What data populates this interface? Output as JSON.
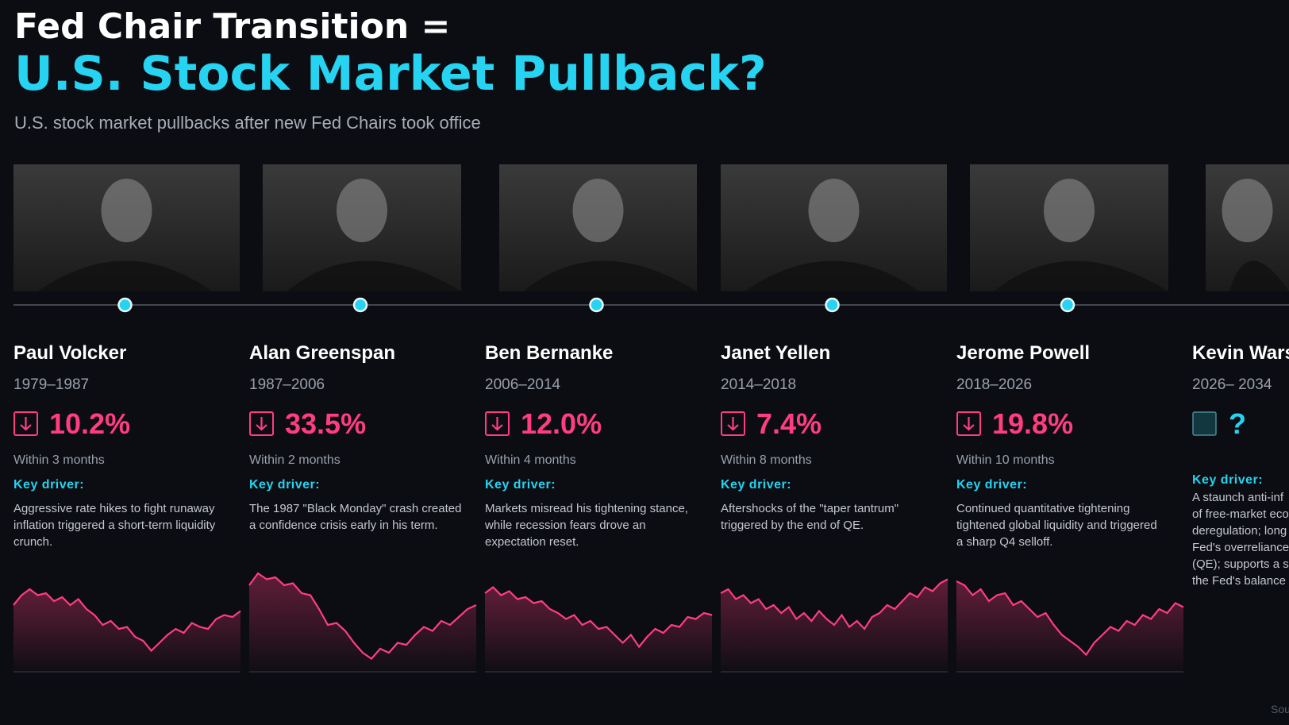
{
  "header": {
    "title_line1": "Fed Chair Transition =",
    "title_line2": "U.S. Stock Market Pullback?",
    "subtitle": "U.S. stock market pullbacks after new Fed Chairs took office"
  },
  "chairs": [
    {
      "name": "Paul Volcker",
      "term": "1979–1987",
      "pullback": "10.2%",
      "window": "Within 3 months",
      "driver_label": "Key driver:",
      "driver": [
        "Aggressive rate hikes to fight runaway",
        "inflation triggered a short-term liquidity",
        "crunch."
      ],
      "sparkline": [
        60,
        70,
        76,
        70,
        72,
        64,
        68,
        60,
        66,
        56,
        50,
        40,
        44,
        36,
        38,
        28,
        24,
        14,
        22,
        30,
        36,
        32,
        42,
        38,
        36,
        46,
        50,
        48,
        54
      ]
    },
    {
      "name": "Alan Greenspan",
      "term": "1987–2006",
      "pullback": "33.5%",
      "window": "Within 2 months",
      "driver_label": "Key driver:",
      "driver": [
        "The 1987 \"Black Monday\" crash created",
        "a confidence crisis early in his term."
      ],
      "sparkline": [
        80,
        92,
        86,
        88,
        80,
        82,
        72,
        70,
        56,
        40,
        42,
        34,
        22,
        12,
        6,
        16,
        12,
        22,
        20,
        30,
        38,
        34,
        44,
        40,
        48,
        56,
        60
      ]
    },
    {
      "name": "Ben Bernanke",
      "term": "2006–2014",
      "pullback": "12.0%",
      "window": "Within 4 months",
      "driver_label": "Key driver:",
      "driver": [
        "Markets misread his tightening stance,",
        "while recession fears drove an",
        "expectation reset."
      ],
      "sparkline": [
        72,
        78,
        70,
        74,
        66,
        68,
        62,
        64,
        56,
        52,
        46,
        50,
        40,
        44,
        36,
        38,
        30,
        22,
        30,
        18,
        28,
        36,
        32,
        40,
        38,
        48,
        46,
        52,
        50
      ]
    },
    {
      "name": "Janet Yellen",
      "term": "2014–2018",
      "pullback": "7.4%",
      "window": "Within 8 months",
      "driver_label": "Key driver:",
      "driver": [
        "Aftershocks of the \"taper tantrum\"",
        "triggered by the end of QE."
      ],
      "sparkline": [
        72,
        76,
        66,
        70,
        62,
        66,
        56,
        60,
        52,
        58,
        46,
        52,
        44,
        54,
        46,
        40,
        50,
        38,
        44,
        36,
        48,
        52,
        60,
        56,
        64,
        72,
        68,
        78,
        74,
        82,
        86
      ]
    },
    {
      "name": "Jerome Powell",
      "term": "2018–2026",
      "pullback": "19.8%",
      "window": "Within 10 months",
      "driver_label": "Key driver:",
      "driver": [
        "Continued quantitative tightening",
        "tightened global liquidity and triggered",
        "a sharp Q4 selloff."
      ],
      "sparkline": [
        84,
        80,
        70,
        76,
        64,
        70,
        72,
        60,
        64,
        56,
        48,
        52,
        40,
        30,
        24,
        18,
        10,
        22,
        30,
        38,
        34,
        44,
        40,
        50,
        46,
        56,
        52,
        62,
        58
      ]
    },
    {
      "name": "Kevin Warsh",
      "term": "2026– 2034",
      "pullback": "?",
      "driver_label": "Key driver:",
      "driver": [
        "A staunch anti-inf",
        "of free-market eco",
        "deregulation; long",
        "Fed's overreliance",
        "(QE); supports a s",
        "the Fed's balance"
      ]
    }
  ],
  "footer": {
    "source": "Sou"
  }
}
